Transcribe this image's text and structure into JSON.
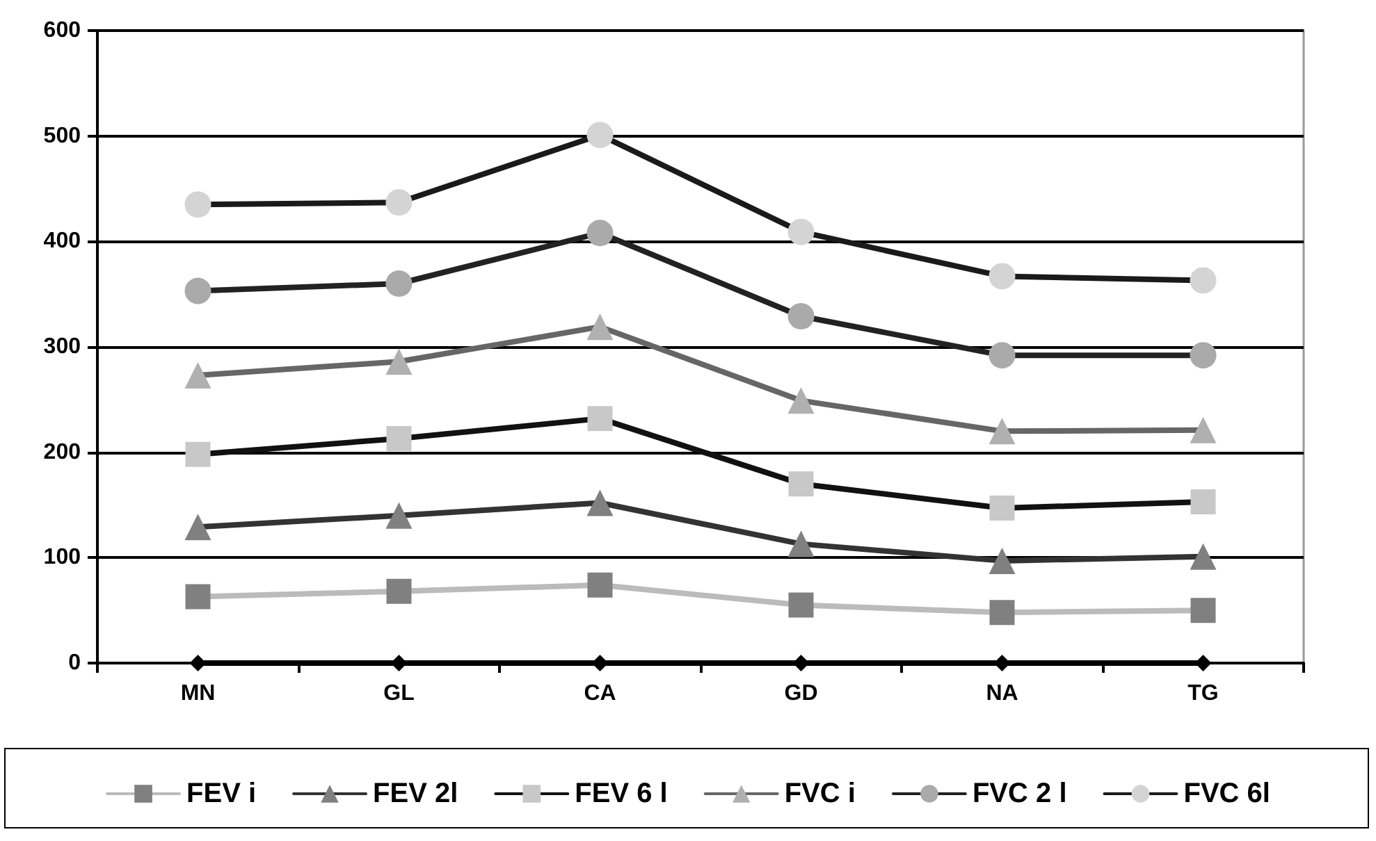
{
  "chart_data": {
    "type": "line",
    "categories": [
      "MN",
      "GL",
      "CA",
      "GD",
      "NA",
      "TG"
    ],
    "series": [
      {
        "name": "FEV i",
        "color": "#bbbbbb",
        "colors": [
          "#808080",
          "#808080",
          "#808080",
          "#808080",
          "#808080",
          "#808080"
        ],
        "marker": "square",
        "values": [
          63,
          68,
          74,
          55,
          48,
          50
        ]
      },
      {
        "name": "FEV 2l",
        "color": "#333333",
        "colors": [
          "#808080",
          "#808080",
          "#808080",
          "#808080",
          "#808080",
          "#808080"
        ],
        "marker": "triangle",
        "values": [
          129,
          140,
          152,
          113,
          97,
          101
        ]
      },
      {
        "name": "FEV 6 l",
        "color": "#111111",
        "colors": [
          "#c8c8c8",
          "#c8c8c8",
          "#c8c8c8",
          "#c8c8c8",
          "#c8c8c8",
          "#c8c8c8"
        ],
        "marker": "square",
        "values": [
          198,
          213,
          232,
          170,
          147,
          153
        ]
      },
      {
        "name": "FVC i",
        "color": "#666666",
        "colors": [
          "#b0b0b0",
          "#b0b0b0",
          "#b0b0b0",
          "#b0b0b0",
          "#b0b0b0",
          "#b0b0b0"
        ],
        "marker": "triangle",
        "values": [
          273,
          286,
          319,
          249,
          220,
          221
        ]
      },
      {
        "name": "FVC 2 l",
        "color": "#222222",
        "colors": [
          "#aaaaaa",
          "#aaaaaa",
          "#aaaaaa",
          "#aaaaaa",
          "#aaaaaa",
          "#aaaaaa"
        ],
        "marker": "circle",
        "values": [
          353,
          360,
          408,
          329,
          292,
          292
        ]
      },
      {
        "name": "FVC 6l",
        "color": "#1a1a1a",
        "colors": [
          "#d4d4d4",
          "#d4d4d4",
          "#d4d4d4",
          "#d4d4d4",
          "#d4d4d4",
          "#d4d4d4"
        ],
        "marker": "circle",
        "values": [
          435,
          437,
          501,
          409,
          367,
          363
        ]
      },
      {
        "color": "#000000",
        "marker": "diamond",
        "values": [
          0,
          0,
          0,
          0,
          0,
          0
        ]
      }
    ],
    "ylim": [
      0,
      600
    ],
    "yticks": [
      0,
      100,
      200,
      300,
      400,
      500,
      600
    ],
    "grid": "y",
    "legend": "bottom",
    "line_style": "solid"
  }
}
